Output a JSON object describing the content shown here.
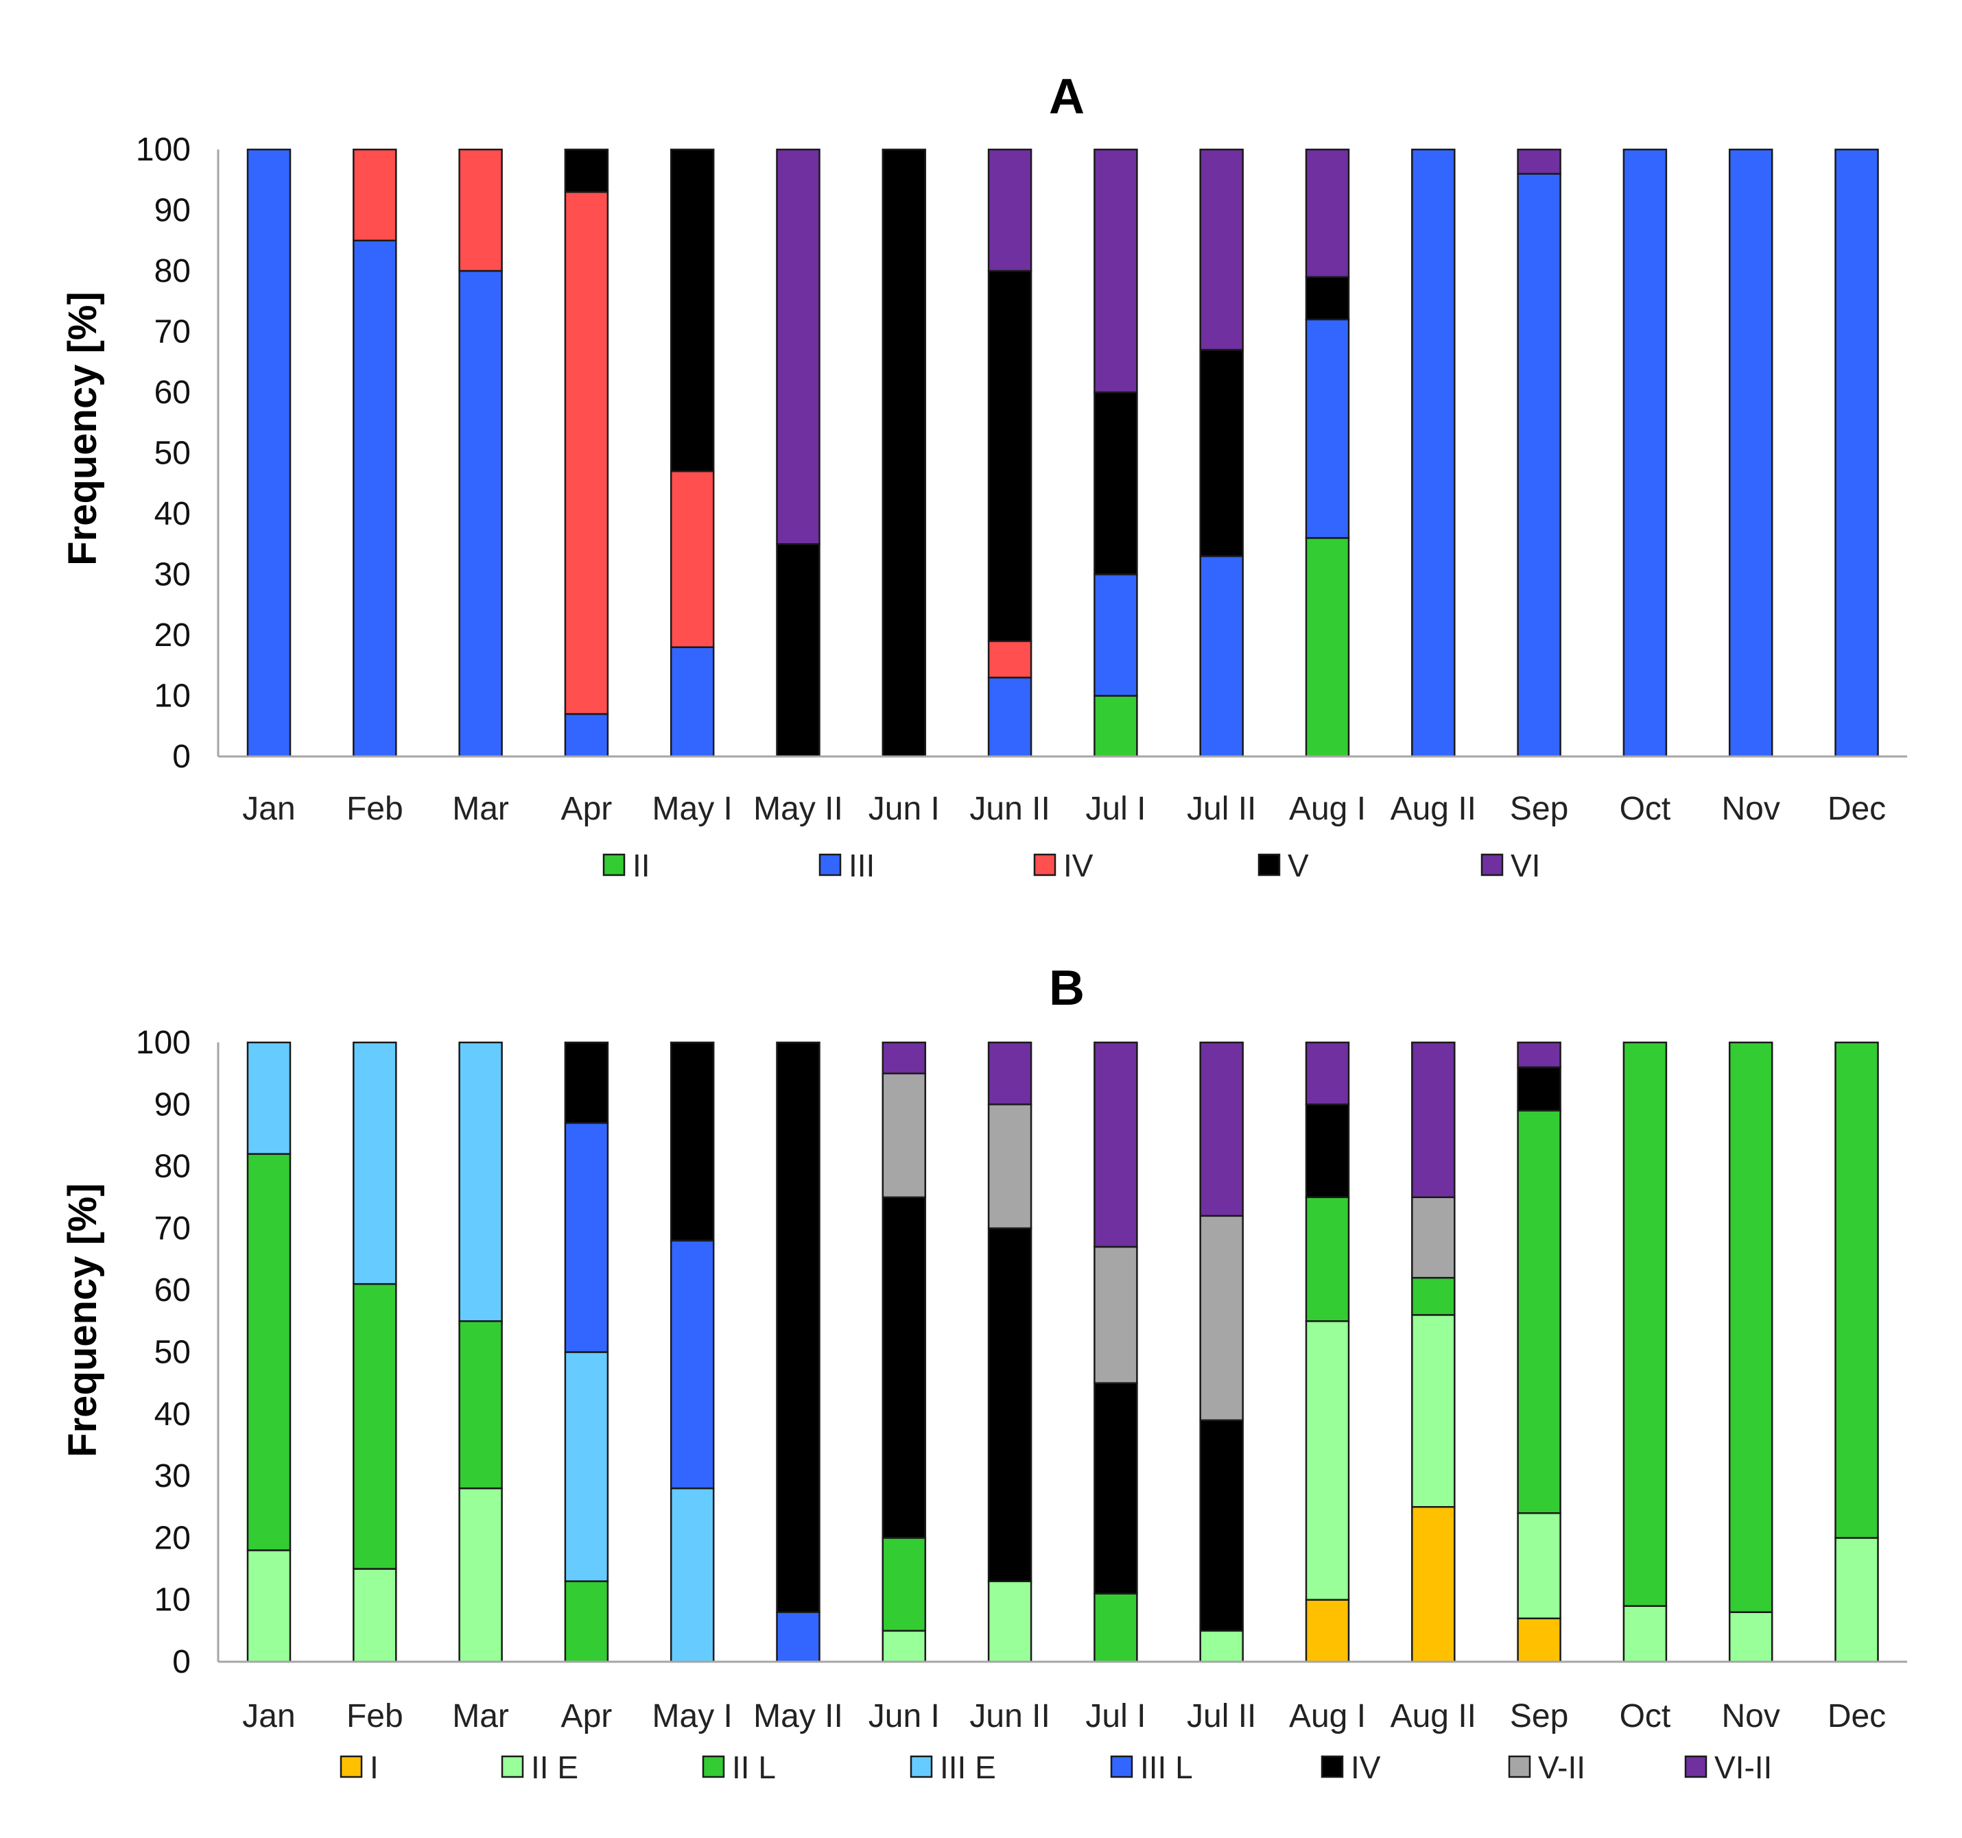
{
  "chart_data": [
    {
      "type": "bar",
      "stacked": true,
      "title": "A",
      "xlabel": "",
      "ylabel": "Frequency [%]",
      "ylim": [
        0,
        100
      ],
      "yticks": [
        0,
        10,
        20,
        30,
        40,
        50,
        60,
        70,
        80,
        90,
        100
      ],
      "grid": false,
      "legend_position": "bottom",
      "categories": [
        "Jan",
        "Feb",
        "Mar",
        "Apr",
        "May I",
        "May II",
        "Jun I",
        "Jun II",
        "Jul I",
        "Jul II",
        "Aug I",
        "Aug II",
        "Sep",
        "Oct",
        "Nov",
        "Dec"
      ],
      "series": [
        {
          "name": "II",
          "color": "#33cc33",
          "values": [
            0,
            0,
            0,
            0,
            0,
            0,
            0,
            0,
            10,
            0,
            36,
            0,
            0,
            0,
            0,
            0
          ]
        },
        {
          "name": "III",
          "color": "#3366ff",
          "values": [
            100,
            85,
            80,
            7,
            18,
            0,
            0,
            13,
            20,
            33,
            36,
            100,
            96,
            100,
            100,
            100
          ]
        },
        {
          "name": "IV",
          "color": "#ff4f4f",
          "values": [
            0,
            15,
            20,
            86,
            29,
            0,
            0,
            6,
            0,
            0,
            0,
            0,
            0,
            0,
            0,
            0
          ]
        },
        {
          "name": "V",
          "color": "#000000",
          "values": [
            0,
            0,
            0,
            7,
            53,
            35,
            100,
            61,
            30,
            34,
            7,
            0,
            0,
            0,
            0,
            0
          ]
        },
        {
          "name": "VI",
          "color": "#7030a0",
          "values": [
            0,
            0,
            0,
            0,
            0,
            65,
            0,
            20,
            40,
            33,
            21,
            0,
            4,
            0,
            0,
            0
          ]
        }
      ]
    },
    {
      "type": "bar",
      "stacked": true,
      "title": "B",
      "xlabel": "",
      "ylabel": "Frequency [%]",
      "ylim": [
        0,
        100
      ],
      "yticks": [
        0,
        10,
        20,
        30,
        40,
        50,
        60,
        70,
        80,
        90,
        100
      ],
      "grid": false,
      "legend_position": "bottom",
      "categories": [
        "Jan",
        "Feb",
        "Mar",
        "Apr",
        "May I",
        "May II",
        "Jun I",
        "Jun II",
        "Jul I",
        "Jul II",
        "Aug I",
        "Aug II",
        "Sep",
        "Oct",
        "Nov",
        "Dec"
      ],
      "series": [
        {
          "name": "I",
          "color": "#ffc000",
          "values": [
            0,
            0,
            0,
            0,
            0,
            0,
            0,
            0,
            0,
            0,
            10,
            25,
            7,
            0,
            0,
            0
          ]
        },
        {
          "name": "II E",
          "color": "#99ff99",
          "values": [
            18,
            15,
            28,
            0,
            0,
            0,
            5,
            13,
            0,
            5,
            45,
            31,
            17,
            9,
            8,
            20
          ]
        },
        {
          "name": "II L",
          "color": "#33cc33",
          "values": [
            64,
            46,
            27,
            13,
            0,
            0,
            15,
            0,
            11,
            0,
            20,
            6,
            65,
            91,
            92,
            80
          ]
        },
        {
          "name": "III E",
          "color": "#66ccff",
          "values": [
            18,
            39,
            45,
            37,
            28,
            0,
            0,
            0,
            0,
            0,
            0,
            0,
            0,
            0,
            0,
            0
          ]
        },
        {
          "name": "III L",
          "color": "#3366ff",
          "values": [
            0,
            0,
            0,
            37,
            40,
            8,
            0,
            0,
            0,
            0,
            0,
            0,
            0,
            0,
            0,
            0
          ]
        },
        {
          "name": "IV",
          "color": "#000000",
          "values": [
            0,
            0,
            0,
            13,
            32,
            92,
            55,
            57,
            34,
            34,
            15,
            0,
            7,
            0,
            0,
            0
          ]
        },
        {
          "name": "V-II",
          "color": "#a6a6a6",
          "values": [
            0,
            0,
            0,
            0,
            0,
            0,
            20,
            20,
            22,
            33,
            0,
            13,
            0,
            0,
            0,
            0
          ]
        },
        {
          "name": "VI-II",
          "color": "#7030a0",
          "values": [
            0,
            0,
            0,
            0,
            0,
            0,
            5,
            10,
            33,
            28,
            10,
            25,
            4,
            0,
            0,
            0
          ]
        }
      ]
    }
  ]
}
